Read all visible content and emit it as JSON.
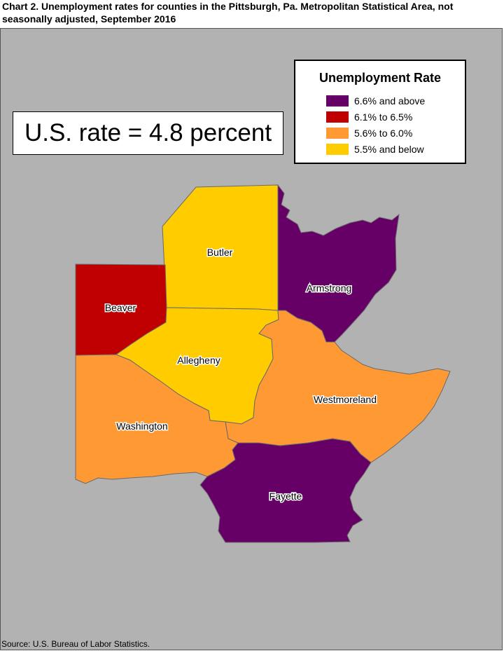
{
  "title": "Chart 2. Unemployment rates for counties in the Pittsburgh, Pa. Metropolitan Statistical Area, not seasonally adjusted, September 2016",
  "us_rate": "U.S. rate = 4.8 percent",
  "legend": {
    "title": "Unemployment Rate",
    "items": [
      {
        "label": "6.6% and above",
        "color": "#660066"
      },
      {
        "label": "6.1% to 6.5%",
        "color": "#c00000"
      },
      {
        "label": "5.6% to 6.0%",
        "color": "#ff9933"
      },
      {
        "label": "5.5% and below",
        "color": "#ffcc00"
      }
    ]
  },
  "counties": {
    "butler": {
      "name": "Butler",
      "category": "5.5% and below",
      "color": "#ffcc00"
    },
    "armstrong": {
      "name": "Armstrong",
      "category": "6.6% and above",
      "color": "#660066"
    },
    "beaver": {
      "name": "Beaver",
      "category": "6.1% to 6.5%",
      "color": "#c00000"
    },
    "allegheny": {
      "name": "Allegheny",
      "category": "5.5% and below",
      "color": "#ffcc00"
    },
    "westmoreland": {
      "name": "Westmoreland",
      "category": "5.6% to 6.0%",
      "color": "#ff9933"
    },
    "washington": {
      "name": "Washington",
      "category": "5.6% to 6.0%",
      "color": "#ff9933"
    },
    "fayette": {
      "name": "Fayette",
      "category": "6.6% and above",
      "color": "#660066"
    }
  },
  "source": "Source: U.S. Bureau of Labor Statistics."
}
